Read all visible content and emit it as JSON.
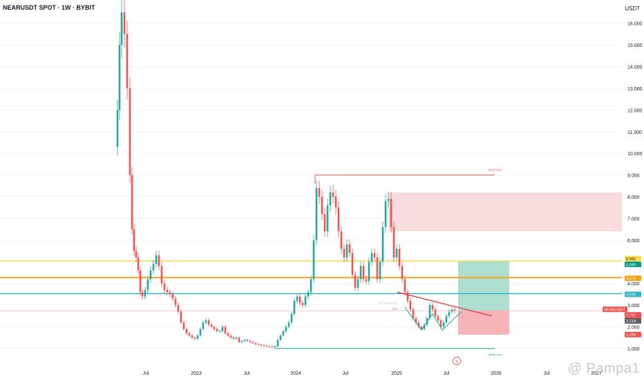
{
  "header": {
    "symbol_title": "NEARUSDT SPOT · 1W · BYBIT",
    "currency": "USDT"
  },
  "watermark": "@ Pampa1",
  "chart_data": {
    "type": "candlestick",
    "title": "NEARUSDT SPOT · 1W · BYBIT",
    "xlabel": "",
    "ylabel": "",
    "ylim": [
      0.5,
      16.5
    ],
    "y_scale": "log",
    "y_ticks": [
      "16.000",
      "15.000",
      "14.000",
      "13.000",
      "12.000",
      "11.000",
      "10.000",
      "9.000",
      "8.000",
      "7.000",
      "6.000",
      "5.000",
      "4.000",
      "3.000",
      "2.000",
      "1.000"
    ],
    "x_ticks": [
      "Jul",
      "2023",
      "Jul",
      "2024",
      "Jul",
      "2025",
      "Jul",
      "2026",
      "Jul",
      "2027"
    ],
    "colors": {
      "up": "#26a69a",
      "down": "#ef5350",
      "yellow": "#f9e04b",
      "orange": "#f7a21b",
      "cyan": "#2ab5c6"
    },
    "price_labels": [
      {
        "text": "5.042",
        "color": "#f9e04b"
      },
      {
        "text": "5.040",
        "color": "#089981"
      },
      {
        "text": "4.272",
        "color": "#f7a21b"
      },
      {
        "text": "3.530",
        "color": "#2ab5c6"
      },
      {
        "text": "NEARUSDT",
        "color": "#ef5350"
      },
      {
        "text": "2.742",
        "color": "#ef5350"
      },
      {
        "text": "1d 8h",
        "color": "#ef5350"
      },
      {
        "text": "2.714",
        "color": "#5d6069"
      },
      {
        "text": "1.639",
        "color": "#ef5350"
      }
    ],
    "annotations": {
      "high": "Weak High",
      "low": "Weak Low",
      "pct": "50%"
    },
    "horizontal_levels": [
      5.04,
      4.27,
      3.53
    ],
    "weak_high": 9.0,
    "weak_low": 1.0,
    "supply_zone": [
      6.4,
      8.2
    ],
    "trade_box": {
      "entry": 2.742,
      "target": 5.04,
      "stop": 1.639
    }
  }
}
